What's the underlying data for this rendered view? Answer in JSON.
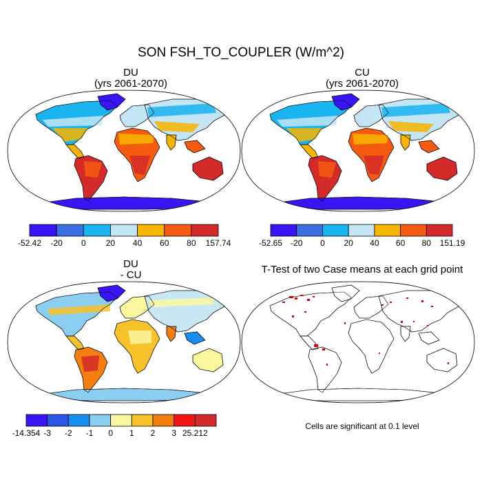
{
  "figure": {
    "title": "SON FSH_TO_COUPLER (W/m^2)"
  },
  "panels": [
    {
      "id": "du",
      "title_line1": "DU",
      "title_line2": "(yrs 2061-2070)",
      "colorbar": {
        "labels": [
          "-52.42",
          "-20",
          "0",
          "20",
          "40",
          "60",
          "80",
          "157.74"
        ],
        "colors": [
          "#3b14f5",
          "#3a6fe3",
          "#1ab4f0",
          "#c4e5f5",
          "#f7b500",
          "#f65a10",
          "#d42a2a"
        ]
      }
    },
    {
      "id": "cu",
      "title_line1": "CU",
      "title_line2": "(yrs 2061-2070)",
      "colorbar": {
        "labels": [
          "-52.65",
          "-20",
          "0",
          "20",
          "40",
          "60",
          "80",
          "151.19"
        ],
        "colors": [
          "#3b14f5",
          "#3a6fe3",
          "#1ab4f0",
          "#c4e5f5",
          "#f7b500",
          "#f65a10",
          "#d42a2a"
        ]
      }
    },
    {
      "id": "diff",
      "title_line1": "DU",
      "title_line2": "- CU",
      "colorbar": {
        "labels": [
          "-14.354",
          "-3",
          "-2",
          "-1",
          "0",
          "1",
          "2",
          "3",
          "25.212"
        ],
        "colors": [
          "#3b14f5",
          "#2b56e6",
          "#1a8ef0",
          "#8ccdf2",
          "#fbf6a0",
          "#f7c22a",
          "#f57e10",
          "#f21515",
          "#d42a2a"
        ]
      }
    },
    {
      "id": "ttest",
      "title_line1": "T-Test of two Case means at each grid point",
      "note": "Cells are significant at 0.1 level",
      "signif_color": "#e00000"
    }
  ]
}
